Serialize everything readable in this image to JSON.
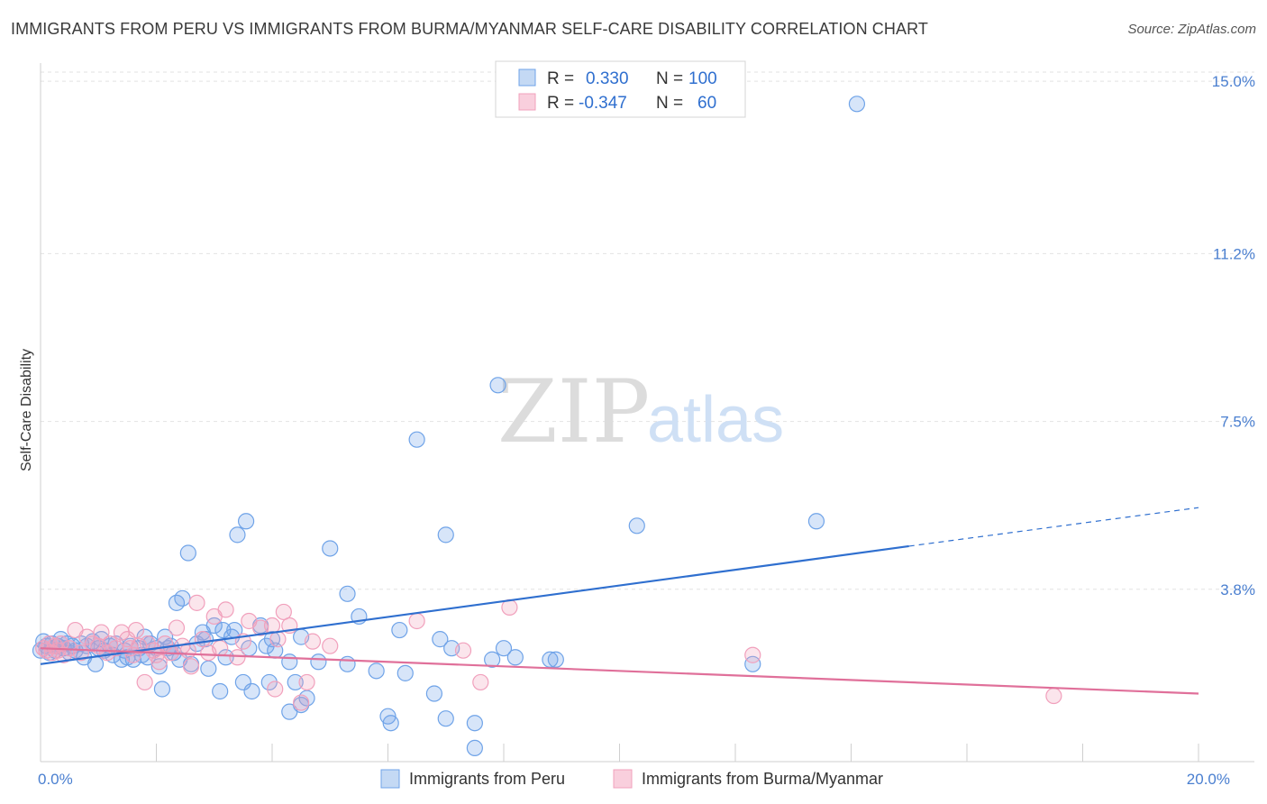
{
  "title": "IMMIGRANTS FROM PERU VS IMMIGRANTS FROM BURMA/MYANMAR SELF-CARE DISABILITY CORRELATION CHART",
  "source": "Source: ZipAtlas.com",
  "watermark": {
    "zip": "ZIP",
    "atlas": "atlas"
  },
  "legend": {
    "rows": [
      {
        "r_label": "R =",
        "r_value": "0.330",
        "n_label": "N =",
        "n_value": "100",
        "color": "#6fa3e8"
      },
      {
        "r_label": "R =",
        "r_value": "-0.347",
        "n_label": "N =",
        "n_value": "60",
        "color": "#f1a0bc"
      }
    ]
  },
  "bottom_legend": [
    {
      "label": "Immigrants from Peru",
      "color": "#6fa3e8"
    },
    {
      "label": "Immigrants from Burma/Myanmar",
      "color": "#f1a0bc"
    }
  ],
  "chart_data": {
    "type": "scatter",
    "title": "IMMIGRANTS FROM PERU VS IMMIGRANTS FROM BURMA/MYANMAR SELF-CARE DISABILITY CORRELATION CHART",
    "xlabel": "",
    "ylabel": "Self-Care Disability",
    "xlim": [
      0,
      20
    ],
    "ylim": [
      0,
      15.4
    ],
    "x_tick_labels": [
      {
        "value": 0,
        "label": "0.0%"
      },
      {
        "value": 20,
        "label": "20.0%"
      }
    ],
    "y_tick_labels": [
      {
        "value": 3.8,
        "label": "3.8%"
      },
      {
        "value": 7.5,
        "label": "7.5%"
      },
      {
        "value": 11.2,
        "label": "11.2%"
      },
      {
        "value": 15.0,
        "label": "15.0%"
      }
    ],
    "grid": true,
    "legend_position": "top-center",
    "series": [
      {
        "name": "Immigrants from Peru",
        "color": "#6fa3e8",
        "trend": {
          "x": [
            0,
            15.0
          ],
          "y": [
            2.15,
            4.75
          ],
          "dashed_to": [
            20,
            5.6
          ]
        },
        "points": [
          [
            0.05,
            2.65
          ],
          [
            0.1,
            2.55
          ],
          [
            0.15,
            2.4
          ],
          [
            0.2,
            2.6
          ],
          [
            0.25,
            2.45
          ],
          [
            0.3,
            2.55
          ],
          [
            0.35,
            2.7
          ],
          [
            0.4,
            2.5
          ],
          [
            0.45,
            2.6
          ],
          [
            0.5,
            2.4
          ],
          [
            0.55,
            2.55
          ],
          [
            0.6,
            2.45
          ],
          [
            0.7,
            2.6
          ],
          [
            0.75,
            2.3
          ],
          [
            0.8,
            2.55
          ],
          [
            0.9,
            2.65
          ],
          [
            0.95,
            2.15
          ],
          [
            1.0,
            2.5
          ],
          [
            1.05,
            2.7
          ],
          [
            1.1,
            2.45
          ],
          [
            1.2,
            2.55
          ],
          [
            1.25,
            2.35
          ],
          [
            1.3,
            2.6
          ],
          [
            1.4,
            2.25
          ],
          [
            1.45,
            2.45
          ],
          [
            1.5,
            2.3
          ],
          [
            1.55,
            2.55
          ],
          [
            1.6,
            2.25
          ],
          [
            1.7,
            2.5
          ],
          [
            1.75,
            2.35
          ],
          [
            1.8,
            2.75
          ],
          [
            1.85,
            2.3
          ],
          [
            1.9,
            2.6
          ],
          [
            2.0,
            2.5
          ],
          [
            2.05,
            2.1
          ],
          [
            2.1,
            1.6
          ],
          [
            2.15,
            2.75
          ],
          [
            2.2,
            2.5
          ],
          [
            2.25,
            2.55
          ],
          [
            2.3,
            2.4
          ],
          [
            2.35,
            3.5
          ],
          [
            2.4,
            2.25
          ],
          [
            2.45,
            3.6
          ],
          [
            2.55,
            4.6
          ],
          [
            2.6,
            2.15
          ],
          [
            2.7,
            2.6
          ],
          [
            2.8,
            2.85
          ],
          [
            2.85,
            2.7
          ],
          [
            2.9,
            2.05
          ],
          [
            3.0,
            3.0
          ],
          [
            3.1,
            1.55
          ],
          [
            3.15,
            2.9
          ],
          [
            3.2,
            2.3
          ],
          [
            3.3,
            2.75
          ],
          [
            3.35,
            2.9
          ],
          [
            3.4,
            5.0
          ],
          [
            3.5,
            1.75
          ],
          [
            3.55,
            5.3
          ],
          [
            3.6,
            2.5
          ],
          [
            3.65,
            1.55
          ],
          [
            3.8,
            3.0
          ],
          [
            3.9,
            2.55
          ],
          [
            3.95,
            1.75
          ],
          [
            4.0,
            2.7
          ],
          [
            4.05,
            2.45
          ],
          [
            4.3,
            1.1
          ],
          [
            4.3,
            2.2
          ],
          [
            4.4,
            1.75
          ],
          [
            4.5,
            1.25
          ],
          [
            4.5,
            2.75
          ],
          [
            4.6,
            1.4
          ],
          [
            4.8,
            2.2
          ],
          [
            5.0,
            4.7
          ],
          [
            5.3,
            2.15
          ],
          [
            5.3,
            3.7
          ],
          [
            5.5,
            3.2
          ],
          [
            5.8,
            2.0
          ],
          [
            6.0,
            1.0
          ],
          [
            6.05,
            0.85
          ],
          [
            6.2,
            2.9
          ],
          [
            6.3,
            1.95
          ],
          [
            6.5,
            7.1
          ],
          [
            6.8,
            1.5
          ],
          [
            6.9,
            2.7
          ],
          [
            7.0,
            0.95
          ],
          [
            7.0,
            5.0
          ],
          [
            7.1,
            2.5
          ],
          [
            7.5,
            0.85
          ],
          [
            7.5,
            0.3
          ],
          [
            7.8,
            2.25
          ],
          [
            7.9,
            8.3
          ],
          [
            8.0,
            2.5
          ],
          [
            8.2,
            2.3
          ],
          [
            8.8,
            2.25
          ],
          [
            8.9,
            2.25
          ],
          [
            10.3,
            5.2
          ],
          [
            12.3,
            2.15
          ],
          [
            13.4,
            5.3
          ],
          [
            14.1,
            14.5
          ],
          [
            0.0,
            2.45
          ]
        ]
      },
      {
        "name": "Immigrants from Burma/Myanmar",
        "color": "#f1a0bc",
        "trend": {
          "x": [
            0,
            20
          ],
          "y": [
            2.5,
            1.5
          ]
        },
        "points": [
          [
            0.05,
            2.5
          ],
          [
            0.1,
            2.45
          ],
          [
            0.15,
            2.6
          ],
          [
            0.2,
            2.4
          ],
          [
            0.25,
            2.55
          ],
          [
            0.3,
            2.45
          ],
          [
            0.35,
            2.6
          ],
          [
            0.4,
            2.35
          ],
          [
            0.5,
            2.5
          ],
          [
            0.6,
            2.9
          ],
          [
            0.7,
            2.4
          ],
          [
            0.8,
            2.75
          ],
          [
            0.9,
            2.6
          ],
          [
            1.0,
            2.55
          ],
          [
            1.05,
            2.85
          ],
          [
            1.15,
            2.4
          ],
          [
            1.2,
            2.6
          ],
          [
            1.3,
            2.5
          ],
          [
            1.4,
            2.85
          ],
          [
            1.5,
            2.7
          ],
          [
            1.55,
            2.5
          ],
          [
            1.6,
            2.35
          ],
          [
            1.65,
            2.9
          ],
          [
            1.7,
            2.55
          ],
          [
            1.8,
            1.75
          ],
          [
            1.85,
            2.6
          ],
          [
            1.95,
            2.45
          ],
          [
            2.0,
            2.35
          ],
          [
            2.05,
            2.2
          ],
          [
            2.15,
            2.6
          ],
          [
            2.25,
            2.4
          ],
          [
            2.35,
            2.95
          ],
          [
            2.45,
            2.55
          ],
          [
            2.55,
            2.45
          ],
          [
            2.6,
            2.1
          ],
          [
            2.7,
            3.5
          ],
          [
            2.8,
            2.7
          ],
          [
            2.9,
            2.4
          ],
          [
            3.0,
            3.2
          ],
          [
            3.1,
            2.5
          ],
          [
            3.2,
            3.35
          ],
          [
            3.4,
            2.3
          ],
          [
            3.5,
            2.65
          ],
          [
            3.6,
            3.1
          ],
          [
            3.8,
            2.95
          ],
          [
            4.0,
            3.0
          ],
          [
            4.05,
            1.6
          ],
          [
            4.1,
            2.7
          ],
          [
            4.2,
            3.3
          ],
          [
            4.3,
            3.0
          ],
          [
            4.5,
            1.3
          ],
          [
            4.6,
            1.75
          ],
          [
            4.7,
            2.65
          ],
          [
            5.0,
            2.55
          ],
          [
            6.5,
            3.1
          ],
          [
            7.3,
            2.45
          ],
          [
            7.6,
            1.75
          ],
          [
            8.1,
            3.4
          ],
          [
            12.3,
            2.35
          ],
          [
            17.5,
            1.45
          ]
        ]
      }
    ]
  }
}
